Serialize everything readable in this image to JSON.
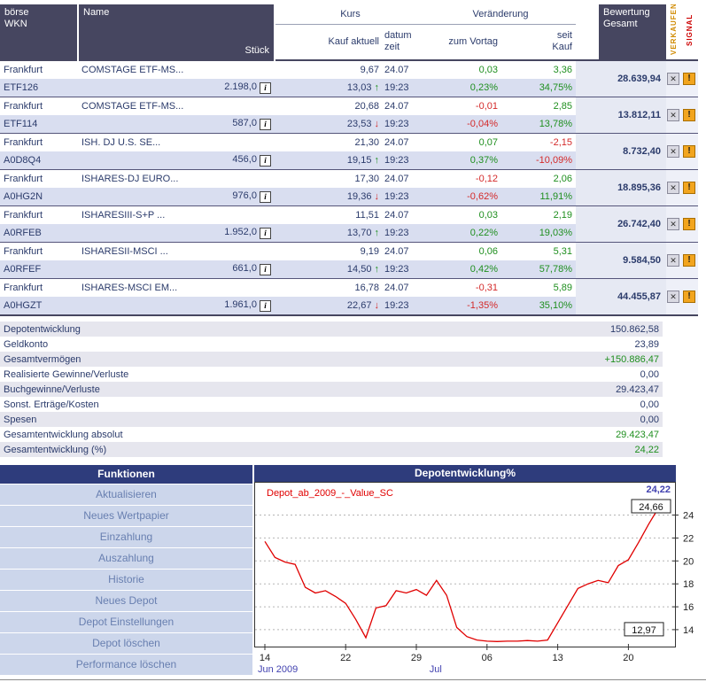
{
  "colors": {
    "header_bg": "#464660",
    "row_alt_bg": "#d9def0",
    "bewertung_bg": "#e6e9f3",
    "positive": "#1f8f1f",
    "negative": "#d42a2a",
    "navy_text": "#2b3b6b",
    "panel_bar_bg": "#2e3c7c",
    "menu_item_bg": "#ccd6eb",
    "menu_item_text": "#687fb0",
    "verkaufen_text": "#d08a00",
    "signal_text": "#cc0000",
    "chart_line": "#e00000",
    "chart_accent_blue": "#4242b0"
  },
  "table": {
    "headers": {
      "boerse": "börse",
      "wkn": "WKN",
      "name": "Name",
      "stueck": "Stück",
      "kurs": "Kurs",
      "veraenderung": "Veränderung",
      "kauf_aktuell": "Kauf aktuell",
      "datum": "datum",
      "zeit": "zeit",
      "zum_vortag": "zum Vortag",
      "seit": "seit",
      "kauf": "Kauf",
      "bewertung": "Bewertung",
      "gesamt": "Gesamt",
      "verkaufen": "VERKAUFEN",
      "signal": "SIGNAL"
    },
    "rows": [
      {
        "boerse": "Frankfurt",
        "wkn": "ETF126",
        "name": "COMSTAGE ETF-MS...",
        "stueck": "2.198,0",
        "kurs_kauf": "9,67",
        "kurs_aktuell": "13,03",
        "trend": "up",
        "datum": "24.07",
        "zeit": "19:23",
        "vortag_abs": "0,03",
        "vortag_pct": "0,23%",
        "seit_abs": "3,36",
        "seit_pct": "34,75%",
        "bewertung": "28.639,94"
      },
      {
        "boerse": "Frankfurt",
        "wkn": "ETF114",
        "name": "COMSTAGE ETF-MS...",
        "stueck": "587,0",
        "kurs_kauf": "20,68",
        "kurs_aktuell": "23,53",
        "trend": "down",
        "datum": "24.07",
        "zeit": "19:23",
        "vortag_abs": "-0,01",
        "vortag_pct": "-0,04%",
        "seit_abs": "2,85",
        "seit_pct": "13,78%",
        "bewertung": "13.812,11"
      },
      {
        "boerse": "Frankfurt",
        "wkn": "A0D8Q4",
        "name": "ISH. DJ U.S. SE...",
        "stueck": "456,0",
        "kurs_kauf": "21,30",
        "kurs_aktuell": "19,15",
        "trend": "up",
        "datum": "24.07",
        "zeit": "19:23",
        "vortag_abs": "0,07",
        "vortag_pct": "0,37%",
        "seit_abs": "-2,15",
        "seit_pct": "-10,09%",
        "bewertung": "8.732,40"
      },
      {
        "boerse": "Frankfurt",
        "wkn": "A0HG2N",
        "name": "ISHARES-DJ EURO...",
        "stueck": "976,0",
        "kurs_kauf": "17,30",
        "kurs_aktuell": "19,36",
        "trend": "down",
        "datum": "24.07",
        "zeit": "19:23",
        "vortag_abs": "-0,12",
        "vortag_pct": "-0,62%",
        "seit_abs": "2,06",
        "seit_pct": "11,91%",
        "bewertung": "18.895,36"
      },
      {
        "boerse": "Frankfurt",
        "wkn": "A0RFEB",
        "name": "ISHARESIII-S+P ...",
        "stueck": "1.952,0",
        "kurs_kauf": "11,51",
        "kurs_aktuell": "13,70",
        "trend": "up",
        "datum": "24.07",
        "zeit": "19:23",
        "vortag_abs": "0,03",
        "vortag_pct": "0,22%",
        "seit_abs": "2,19",
        "seit_pct": "19,03%",
        "bewertung": "26.742,40"
      },
      {
        "boerse": "Frankfurt",
        "wkn": "A0RFEF",
        "name": "ISHARESII-MSCI ...",
        "stueck": "661,0",
        "kurs_kauf": "9,19",
        "kurs_aktuell": "14,50",
        "trend": "up",
        "datum": "24.07",
        "zeit": "19:23",
        "vortag_abs": "0,06",
        "vortag_pct": "0,42%",
        "seit_abs": "5,31",
        "seit_pct": "57,78%",
        "bewertung": "9.584,50"
      },
      {
        "boerse": "Frankfurt",
        "wkn": "A0HGZT",
        "name": "ISHARES-MSCI EM...",
        "stueck": "1.961,0",
        "kurs_kauf": "16,78",
        "kurs_aktuell": "22,67",
        "trend": "down",
        "datum": "24.07",
        "zeit": "19:23",
        "vortag_abs": "-0,31",
        "vortag_pct": "-1,35%",
        "seit_abs": "5,89",
        "seit_pct": "35,10%",
        "bewertung": "44.455,87"
      }
    ]
  },
  "summary": {
    "rows": [
      {
        "label": "Depotentwicklung",
        "value": "150.862,58",
        "green": false
      },
      {
        "label": "Geldkonto",
        "value": "23,89",
        "green": false
      },
      {
        "label": "Gesamtvermögen",
        "value": "+150.886,47",
        "green": true
      },
      {
        "label": "Realisierte Gewinne/Verluste",
        "value": "0,00",
        "green": false
      },
      {
        "label": "Buchgewinne/Verluste",
        "value": "29.423,47",
        "green": false
      },
      {
        "label": "Sonst. Erträge/Kosten",
        "value": "0,00",
        "green": false
      },
      {
        "label": "Spesen",
        "value": "0,00",
        "green": false
      },
      {
        "label": "Gesamtentwicklung absolut",
        "value": "29.423,47",
        "green": true
      },
      {
        "label": "Gesamtentwicklung (%)",
        "value": "24,22",
        "green": true
      }
    ]
  },
  "funktionen": {
    "title": "Funktionen",
    "items": [
      "Aktualisieren",
      "Neues Wertpapier",
      "Einzahlung",
      "Auszahlung",
      "Historie",
      "Neues Depot",
      "Depot Einstellungen",
      "Depot löschen",
      "Performance löschen"
    ]
  },
  "chart": {
    "title": "Depotentwicklung%",
    "legend": "Depot_ab_2009_-_Value_SC",
    "current_value": "24,22",
    "max_label": "24,66",
    "min_label": "12,97"
  },
  "chart_data": {
    "type": "line",
    "title": "Depotentwicklung%",
    "ylabel": "",
    "xlabel": "",
    "ylim": [
      12.45,
      26.9
    ],
    "y_ticks": [
      14,
      16,
      18,
      20,
      22,
      24
    ],
    "x_ticks": [
      {
        "day": 0,
        "label": "14"
      },
      {
        "day": 8,
        "label": "22"
      },
      {
        "day": 15,
        "label": "29"
      },
      {
        "day": 22,
        "label": "06"
      },
      {
        "day": 29,
        "label": "13"
      },
      {
        "day": 36,
        "label": "20"
      }
    ],
    "month_labels": [
      {
        "day": 0,
        "label": "Jun 2009"
      },
      {
        "day": 17,
        "label": "Jul"
      }
    ],
    "grid": "dashed-horizontal",
    "legend_position": "top-left",
    "series": [
      {
        "name": "Depot_ab_2009_-_Value_SC",
        "color": "#e00000",
        "values": [
          21.7,
          20.3,
          19.9,
          19.7,
          17.7,
          17.2,
          17.4,
          16.9,
          16.3,
          14.9,
          13.3,
          15.9,
          16.1,
          17.4,
          17.2,
          17.5,
          17.0,
          18.3,
          17.0,
          14.2,
          13.4,
          13.1,
          13.0,
          12.97,
          13.0,
          13.0,
          13.05,
          13.0,
          13.1,
          14.6,
          16.1,
          17.6,
          18.0,
          18.3,
          18.1,
          19.6,
          20.1,
          21.6,
          23.2,
          24.66,
          24.22
        ]
      }
    ]
  }
}
